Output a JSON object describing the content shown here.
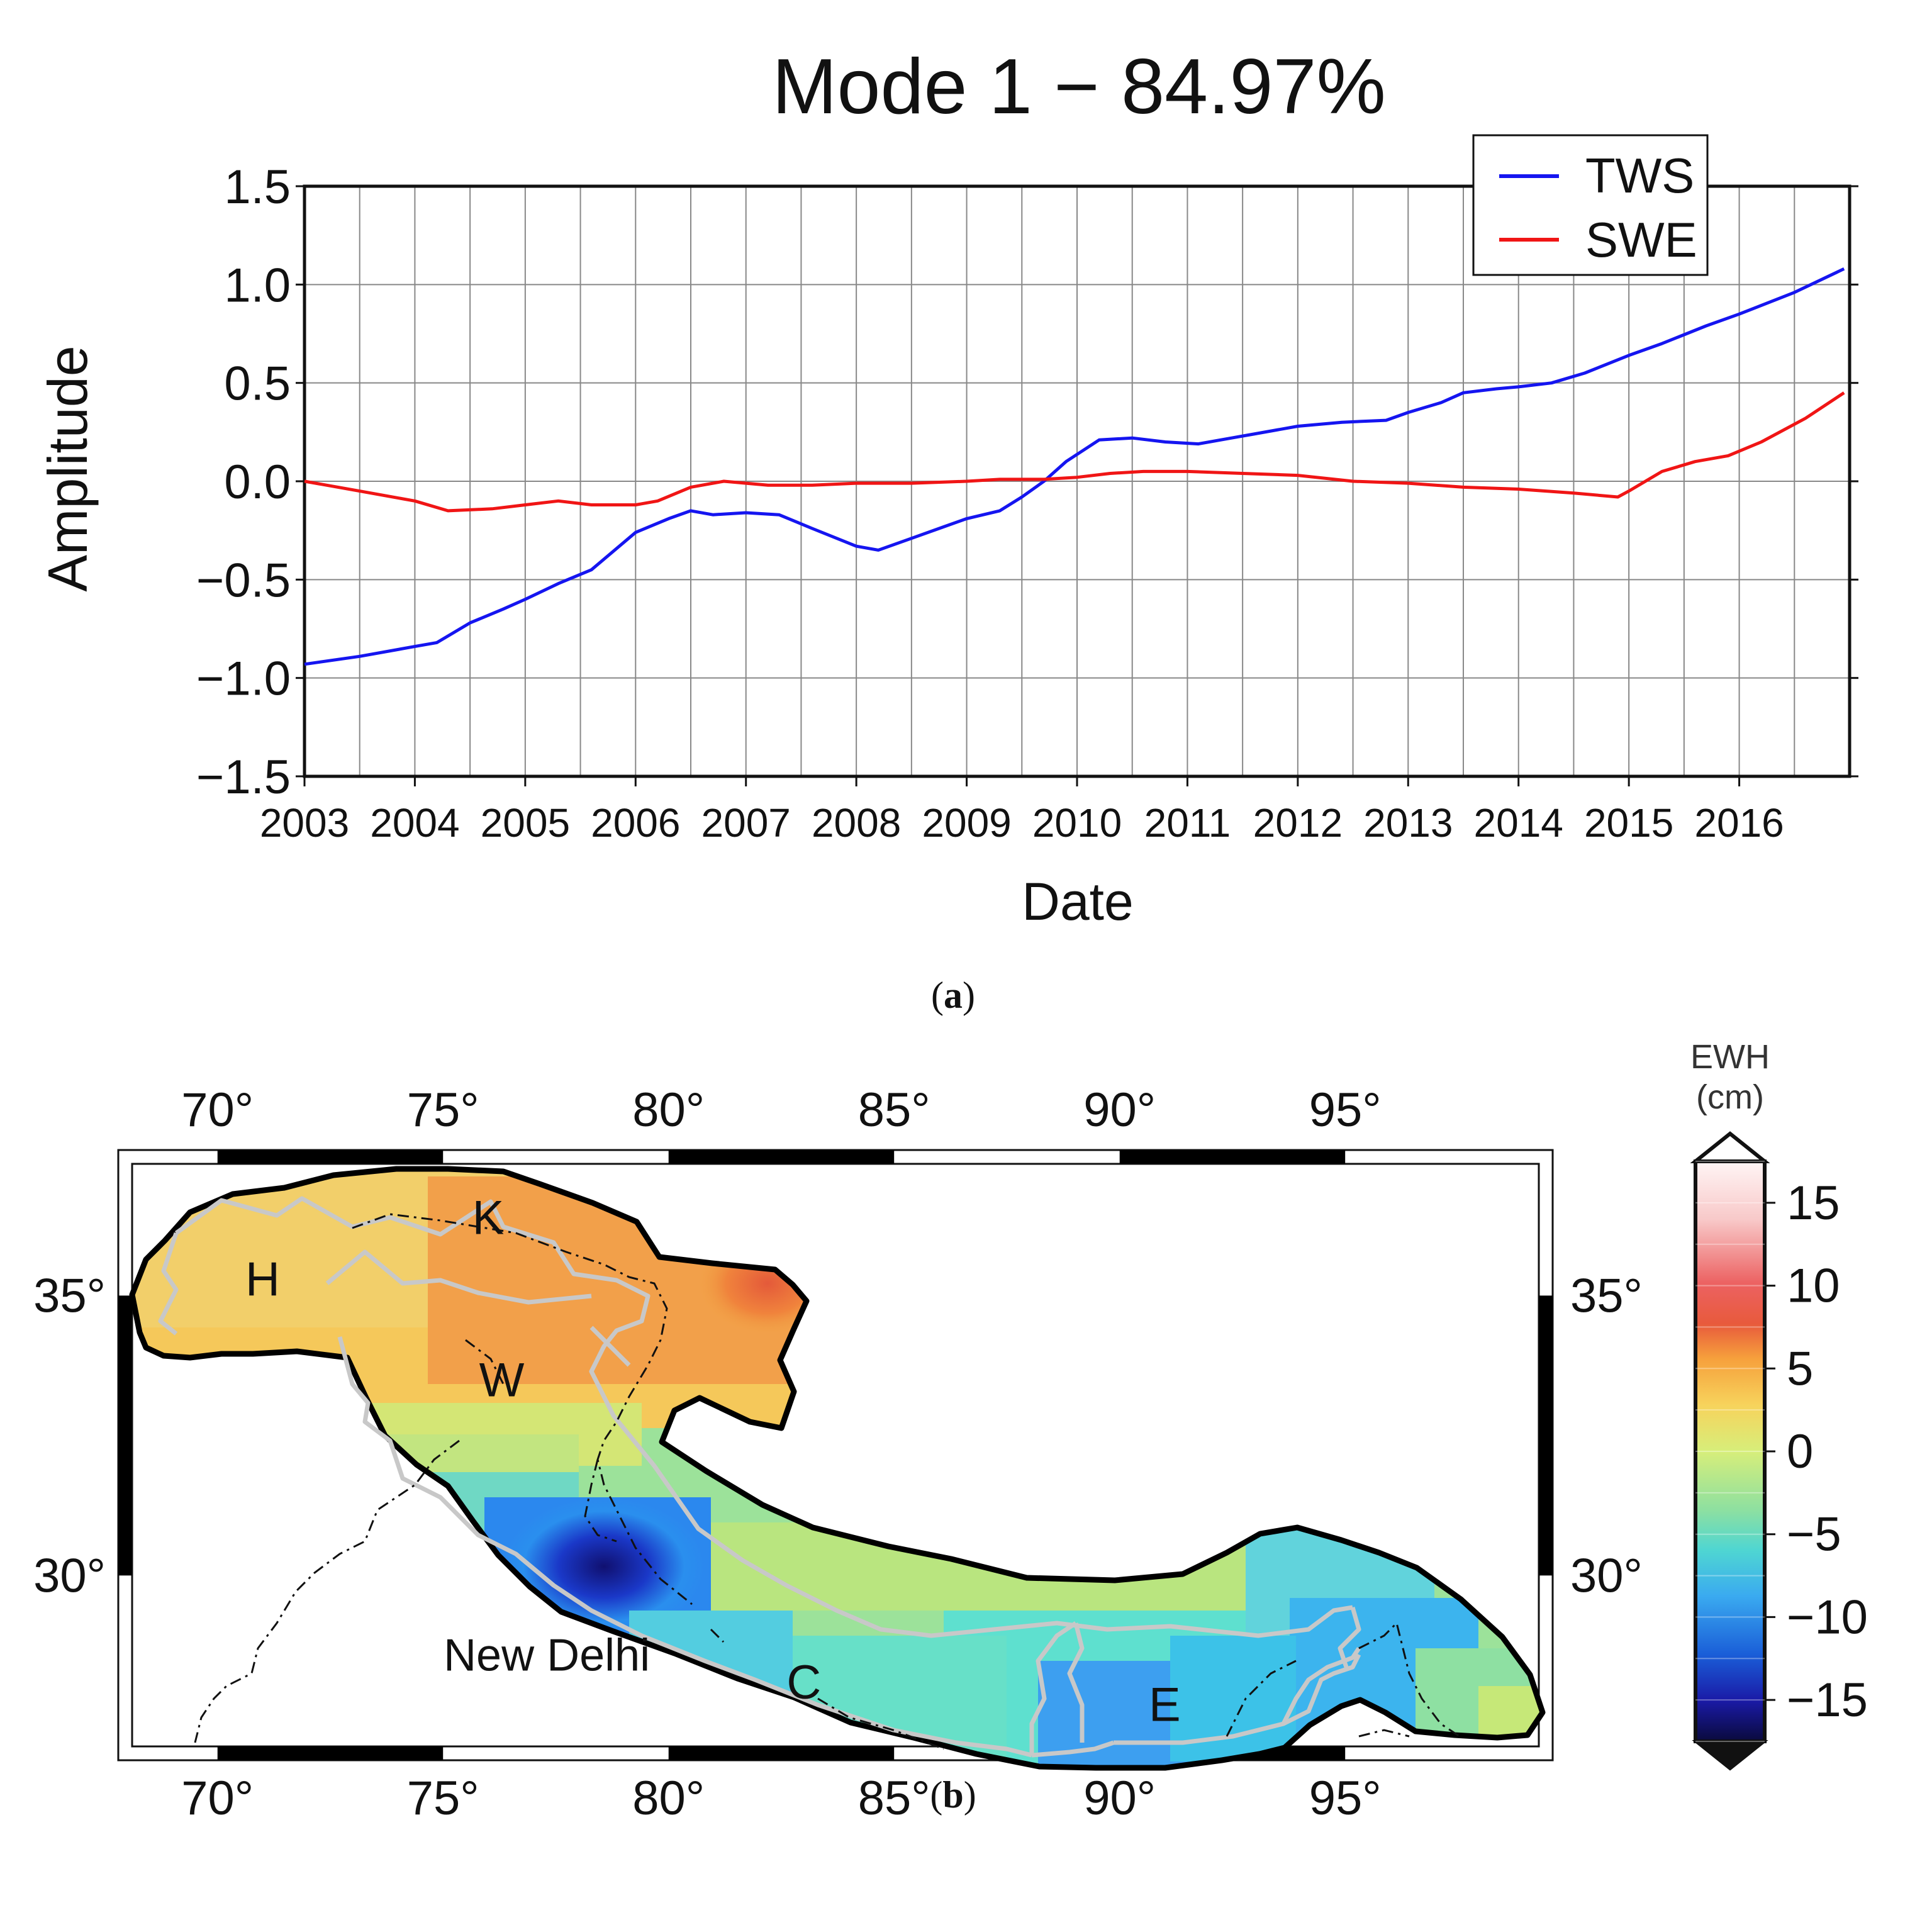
{
  "panel_a": {
    "caption_letter": "a",
    "chart_data": {
      "type": "line",
      "title": "Mode 1 − 84.97%",
      "xlabel": "Date",
      "ylabel": "Amplitude",
      "xlim": [
        2003.0,
        2017.0
      ],
      "ylim": [
        -1.5,
        1.5
      ],
      "grid": true,
      "legend_position": "top-right",
      "x_ticks": [
        2003,
        2004,
        2005,
        2006,
        2007,
        2008,
        2009,
        2010,
        2011,
        2012,
        2013,
        2014,
        2015,
        2016
      ],
      "y_ticks": [
        1.5,
        1.0,
        0.5,
        0.0,
        -0.5,
        -1.0,
        -1.5
      ],
      "y_tick_labels": [
        "1.5",
        "1.0",
        "0.5",
        "0.0",
        "−0.5",
        "−1.0",
        "−1.5"
      ],
      "series": [
        {
          "name": "TWS",
          "color": "#1515f0",
          "x": [
            2003.0,
            2003.5,
            2004.0,
            2004.2,
            2004.5,
            2004.8,
            2005.0,
            2005.3,
            2005.6,
            2006.0,
            2006.3,
            2006.5,
            2006.7,
            2007.0,
            2007.3,
            2007.6,
            2008.0,
            2008.2,
            2008.5,
            2008.8,
            2009.0,
            2009.3,
            2009.5,
            2009.7,
            2009.9,
            2010.2,
            2010.5,
            2010.8,
            2011.1,
            2011.4,
            2011.6,
            2012.0,
            2012.4,
            2012.8,
            2013.0,
            2013.3,
            2013.5,
            2013.8,
            2014.0,
            2014.3,
            2014.6,
            2015.0,
            2015.3,
            2015.7,
            2016.0,
            2016.5,
            2016.95
          ],
          "values": [
            -0.93,
            -0.89,
            -0.84,
            -0.82,
            -0.72,
            -0.65,
            -0.6,
            -0.52,
            -0.45,
            -0.26,
            -0.19,
            -0.15,
            -0.17,
            -0.16,
            -0.17,
            -0.24,
            -0.33,
            -0.35,
            -0.29,
            -0.23,
            -0.19,
            -0.15,
            -0.08,
            0.0,
            0.1,
            0.21,
            0.22,
            0.2,
            0.19,
            0.22,
            0.24,
            0.28,
            0.3,
            0.31,
            0.35,
            0.4,
            0.45,
            0.47,
            0.48,
            0.5,
            0.55,
            0.64,
            0.7,
            0.79,
            0.85,
            0.96,
            1.08
          ]
        },
        {
          "name": "SWE",
          "color": "#f01515",
          "x": [
            2003.0,
            2003.5,
            2004.0,
            2004.3,
            2004.7,
            2005.0,
            2005.3,
            2005.6,
            2006.0,
            2006.2,
            2006.5,
            2006.8,
            2007.2,
            2007.6,
            2008.0,
            2008.5,
            2009.0,
            2009.3,
            2009.7,
            2010.0,
            2010.3,
            2010.6,
            2011.0,
            2011.5,
            2012.0,
            2012.5,
            2013.0,
            2013.5,
            2014.0,
            2014.5,
            2014.9,
            2015.0,
            2015.3,
            2015.6,
            2015.9,
            2016.2,
            2016.6,
            2016.95
          ],
          "values": [
            0.0,
            -0.05,
            -0.1,
            -0.15,
            -0.14,
            -0.12,
            -0.1,
            -0.12,
            -0.12,
            -0.1,
            -0.03,
            0.0,
            -0.02,
            -0.02,
            -0.01,
            -0.01,
            0.0,
            0.01,
            0.01,
            0.02,
            0.04,
            0.05,
            0.05,
            0.04,
            0.03,
            0.0,
            -0.01,
            -0.03,
            -0.04,
            -0.06,
            -0.08,
            -0.05,
            0.05,
            0.1,
            0.13,
            0.2,
            0.32,
            0.45
          ]
        }
      ]
    }
  },
  "panel_b": {
    "caption_letter": "b",
    "lon_ticks": [
      70,
      75,
      80,
      85,
      90,
      95
    ],
    "lon_tick_labels": [
      "70°",
      "75°",
      "80°",
      "85°",
      "90°",
      "95°"
    ],
    "lat_ticks": [
      30,
      35
    ],
    "lat_tick_labels": [
      "30°",
      "35°"
    ],
    "lon_range": [
      67.8,
      99.6
    ],
    "lat_range": [
      26.7,
      37.6
    ],
    "region_labels": [
      {
        "text": "H",
        "lon": 71.0,
        "lat": 35.0
      },
      {
        "text": "K",
        "lon": 76.0,
        "lat": 36.1
      },
      {
        "text": "W",
        "lon": 76.3,
        "lat": 33.2
      },
      {
        "text": "C",
        "lon": 83.0,
        "lat": 27.8
      },
      {
        "text": "E",
        "lon": 91.0,
        "lat": 27.4
      }
    ],
    "city_label": {
      "text": "New Delhi",
      "lon": 77.3,
      "lat": 28.3
    },
    "colorbar": {
      "title_line1": "EWH",
      "title_line2": "(cm)",
      "min": -17.5,
      "max": 17.5,
      "step": 2.5,
      "ticks": [
        15,
        10,
        5,
        0,
        -5,
        -10,
        -15
      ],
      "tick_labels": [
        "15",
        "10",
        "5",
        "0",
        "−5",
        "−10",
        "−15"
      ]
    }
  }
}
